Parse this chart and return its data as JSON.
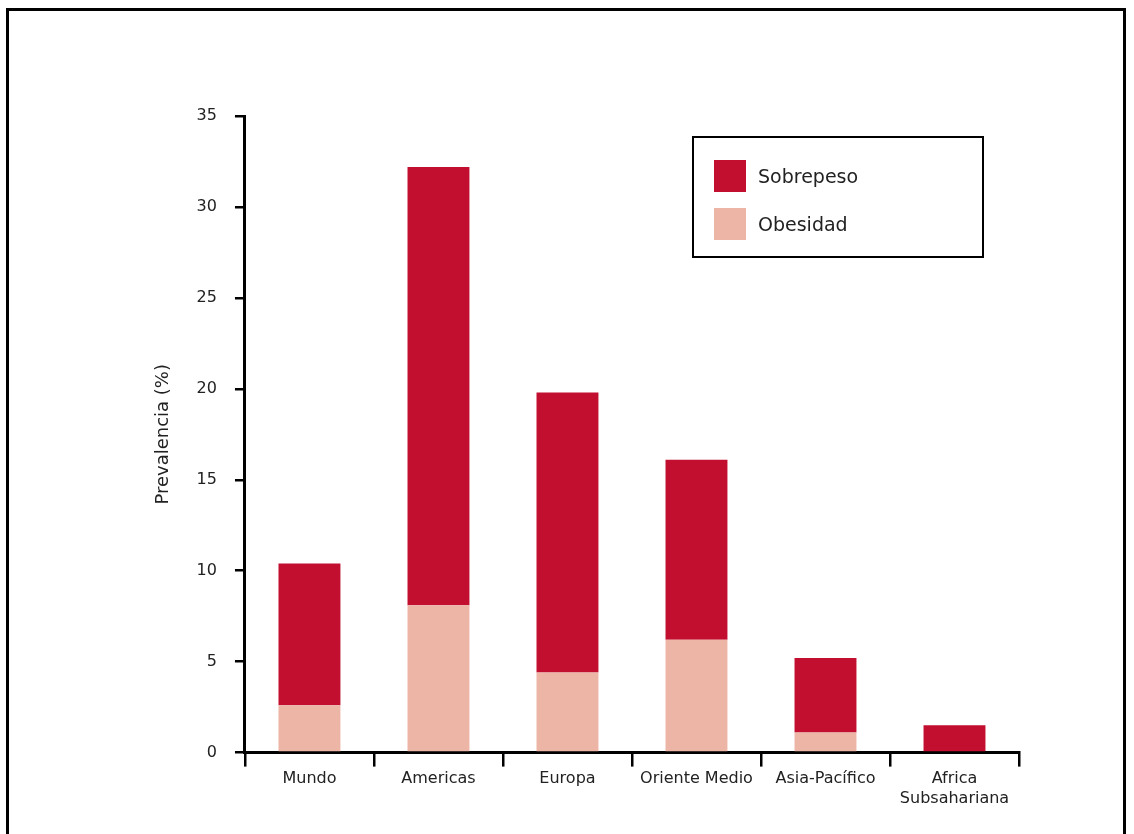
{
  "chart_data": {
    "type": "bar",
    "stacked": true,
    "ylabel": "Prevalencia (%)",
    "categories": [
      "Mundo",
      "Americas",
      "Europa",
      "Oriente Medio",
      "Asia-Pacífico",
      "Africa Subsahariana"
    ],
    "series": [
      {
        "name": "Obesidad",
        "color": "#edb5a6",
        "values": [
          2.6,
          8.1,
          4.4,
          6.2,
          1.1,
          0
        ]
      },
      {
        "name": "Sobrepeso",
        "color": "#c20e2f",
        "values": [
          7.8,
          24.1,
          15.4,
          9.9,
          4.1,
          1.5
        ]
      }
    ],
    "ylim": [
      0,
      35
    ],
    "yticks": [
      0,
      5,
      10,
      15,
      20,
      25,
      30,
      35
    ],
    "grid": false,
    "legend": "top right"
  }
}
